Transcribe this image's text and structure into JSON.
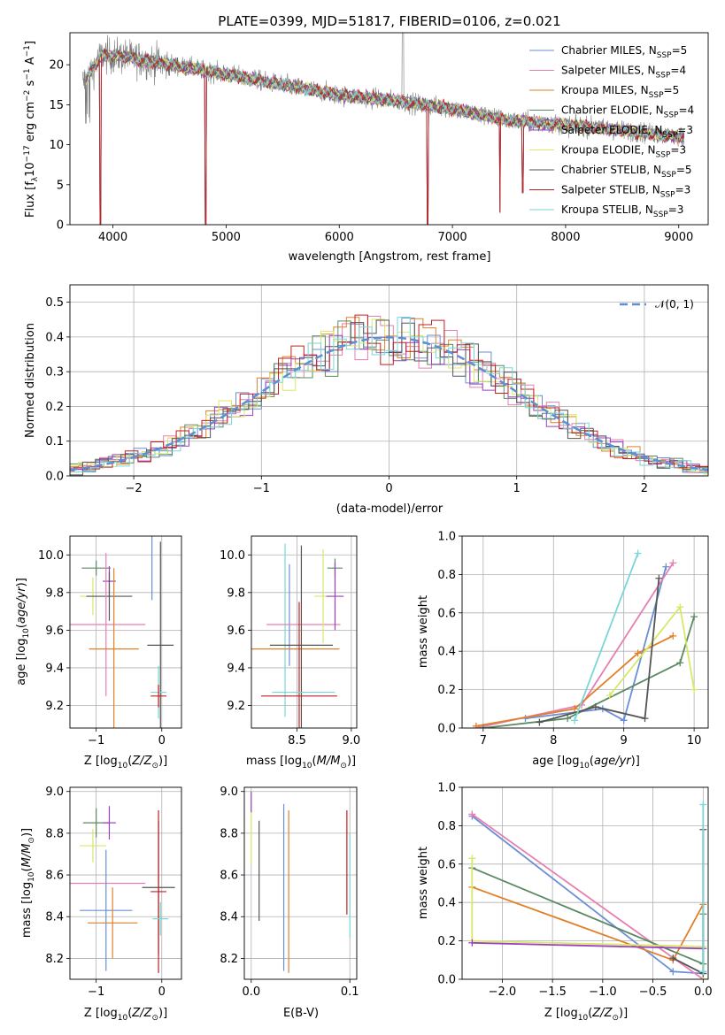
{
  "title": "PLATE=0399, MJD=51817, FIBERID=0106, z=0.021",
  "colors": {
    "Chabrier MILES": "#6a8fd6",
    "Salpeter MILES": "#e57fb1",
    "Kroupa MILES": "#e0802a",
    "Chabrier ELODIE": "#5a8a62",
    "Salpeter ELODIE": "#9a3fbf",
    "Kroupa ELODIE": "#d8e865",
    "Chabrier STELIB": "#555555",
    "Salpeter STELIB": "#c02020",
    "Kroupa STELIB": "#7ad6d8"
  },
  "chart_data": [
    {
      "id": "spectrum",
      "type": "line",
      "xlabel": "wavelength [Angstrom, rest frame]",
      "ylabel": "Flux [f_λ 10^-17 erg cm^-2 s^-1 A^-1]",
      "xlim": [
        3620,
        9260
      ],
      "ylim": [
        0,
        24
      ],
      "xticks": [
        4000,
        5000,
        6000,
        7000,
        8000,
        9000
      ],
      "yticks": [
        0,
        5,
        10,
        15,
        20
      ],
      "legend_position": "top-right",
      "legend": [
        {
          "base": "Chabrier MILES, N",
          "sub": "SSP",
          "tail": "=5"
        },
        {
          "base": "Salpeter MILES, N",
          "sub": "SSP",
          "tail": "=4"
        },
        {
          "base": "Kroupa MILES, N",
          "sub": "SSP",
          "tail": "=5"
        },
        {
          "base": "Chabrier ELODIE, N",
          "sub": "SSP",
          "tail": "=4"
        },
        {
          "base": "Salpeter ELODIE, N",
          "sub": "SSP",
          "tail": "=3"
        },
        {
          "base": "Kroupa ELODIE, N",
          "sub": "SSP",
          "tail": "=3"
        },
        {
          "base": "Chabrier STELIB, N",
          "sub": "SSP",
          "tail": "=5"
        },
        {
          "base": "Salpeter STELIB, N",
          "sub": "SSP",
          "tail": "=3"
        },
        {
          "base": "Kroupa STELIB, N",
          "sub": "SSP",
          "tail": "=3"
        }
      ],
      "continuum": [
        [
          3750,
          18
        ],
        [
          3900,
          21.2
        ],
        [
          4100,
          21
        ],
        [
          4300,
          20.5
        ],
        [
          4600,
          19.8
        ],
        [
          5000,
          18.8
        ],
        [
          5500,
          17.5
        ],
        [
          6000,
          16.2
        ],
        [
          6500,
          15.5
        ],
        [
          7000,
          14.5
        ],
        [
          7500,
          13
        ],
        [
          8000,
          12.5
        ],
        [
          8500,
          11.8
        ],
        [
          9000,
          11
        ]
      ],
      "absorption_lines": [
        [
          3890,
          0
        ],
        [
          4820,
          0
        ],
        [
          6780,
          0
        ],
        [
          7420,
          1.5
        ],
        [
          7620,
          4
        ]
      ],
      "emission_line": [
        6563,
        24
      ]
    },
    {
      "id": "residuals",
      "type": "histogram",
      "xlabel": "(data-model)/error",
      "ylabel": "Normed distribution",
      "xlim": [
        -2.5,
        2.5
      ],
      "ylim": [
        0,
        0.55
      ],
      "xticks": [
        -2,
        -1,
        0,
        1,
        2
      ],
      "yticks": [
        0.0,
        0.1,
        0.2,
        0.3,
        0.4,
        0.5
      ],
      "bin_width": 0.1,
      "legend": "𝒩(0, 1)",
      "legend_position": "top-right"
    },
    {
      "id": "age_vs_Z",
      "type": "scatter",
      "xlabel": "Z [log10(Z/Z⊙)]",
      "ylabel": "age  [log10(age/yr)]",
      "xlim": [
        -1.4,
        0.3
      ],
      "ylim": [
        9.08,
        10.1
      ],
      "xticks": [
        -1,
        0
      ],
      "yticks": [
        9.2,
        9.4,
        9.6,
        9.8,
        10.0
      ],
      "points": [
        {
          "model": "Chabrier MILES",
          "x": -0.15,
          "xerr": 0.0,
          "y": 9.96,
          "yerr": 0.2
        },
        {
          "model": "Chabrier ELODIE",
          "x": -1.0,
          "xerr": 0.22,
          "y": 9.93,
          "yerr": 0.04
        },
        {
          "model": "Salpeter ELODIE",
          "x": -0.8,
          "xerr": 0.1,
          "y": 9.86,
          "yerr": 0.08
        },
        {
          "model": "Kroupa ELODIE",
          "x": -1.05,
          "xerr": 0.2,
          "y": 9.78,
          "yerr": 0.1
        },
        {
          "model": "Chabrier STELIB",
          "x": -0.8,
          "xerr": 0.35,
          "y": 9.78,
          "yerr": 0.13
        },
        {
          "model": "Salpeter MILES",
          "x": -0.85,
          "xerr": 0.6,
          "y": 9.63,
          "yerr": 0.38
        },
        {
          "model": "Kroupa MILES",
          "x": -0.73,
          "xerr": 0.38,
          "y": 9.5,
          "yerr": 0.43
        },
        {
          "model": "Chabrier STELIB",
          "x": -0.02,
          "xerr": 0.2,
          "y": 9.52,
          "yerr": 0.55
        },
        {
          "model": "Kroupa STELIB",
          "x": -0.05,
          "xerr": 0.12,
          "y": 9.27,
          "yerr": 0.14
        },
        {
          "model": "Salpeter STELIB",
          "x": -0.05,
          "xerr": 0.12,
          "y": 9.25,
          "yerr": 0.06
        }
      ]
    },
    {
      "id": "age_vs_mass",
      "type": "scatter",
      "xlabel": "mass [log10(M/M⊙)]",
      "ylabel": "",
      "xlim": [
        8.08,
        9.05
      ],
      "ylim": [
        9.08,
        10.1
      ],
      "xticks": [
        8.5,
        9.0
      ],
      "yticks": [
        9.2,
        9.4,
        9.6,
        9.8,
        10.0
      ],
      "points": [
        {
          "model": "Kroupa STELIB",
          "x": 8.39,
          "xerr": 0.0,
          "y": 9.6,
          "yerr": 0.46
        },
        {
          "model": "Chabrier MILES",
          "x": 8.43,
          "xerr": 0.0,
          "y": 9.68,
          "yerr": 0.27
        },
        {
          "model": "Salpeter MILES",
          "x": 8.56,
          "xerr": 0.34,
          "y": 9.63,
          "yerr": 0.0
        },
        {
          "model": "Kroupa MILES",
          "x": 8.37,
          "xerr": 0.52,
          "y": 9.5,
          "yerr": 0.0
        },
        {
          "model": "Chabrier STELIB",
          "x": 8.54,
          "xerr": 0.29,
          "y": 9.52,
          "yerr": 0.53
        },
        {
          "model": "Salpeter STELIB",
          "x": 8.52,
          "xerr": 0.35,
          "y": 9.25,
          "yerr": 0.5
        },
        {
          "model": "Kroupa STELIB",
          "x": 8.56,
          "xerr": 0.29,
          "y": 9.27,
          "yerr": 0.0
        },
        {
          "model": "Kroupa ELODIE",
          "x": 8.74,
          "xerr": 0.08,
          "y": 9.78,
          "yerr": 0.25
        },
        {
          "model": "Chabrier ELODIE",
          "x": 8.85,
          "xerr": 0.07,
          "y": 9.93,
          "yerr": 0.05
        },
        {
          "model": "Salpeter ELODIE",
          "x": 8.85,
          "xerr": 0.08,
          "y": 9.78,
          "yerr": 0.18
        }
      ]
    },
    {
      "id": "weight_vs_age",
      "type": "line",
      "xlabel": "age  [log10(age/yr)]",
      "ylabel": "mass weight",
      "xlim": [
        6.7,
        10.2
      ],
      "ylim": [
        0,
        1
      ],
      "xticks": [
        7,
        8,
        9,
        10
      ],
      "yticks": [
        0.0,
        0.2,
        0.4,
        0.6,
        0.8,
        1.0
      ],
      "series": [
        {
          "model": "Chabrier MILES",
          "x": [
            7.6,
            8.7,
            9.0,
            9.6
          ],
          "y": [
            0.05,
            0.1,
            0.04,
            0.84
          ]
        },
        {
          "model": "Salpeter MILES",
          "x": [
            6.9,
            8.4,
            9.7
          ],
          "y": [
            0.0,
            0.12,
            0.86
          ]
        },
        {
          "model": "Kroupa MILES",
          "x": [
            6.9,
            8.3,
            9.2,
            9.7
          ],
          "y": [
            0.01,
            0.1,
            0.39,
            0.48
          ]
        },
        {
          "model": "Chabrier ELODIE",
          "x": [
            7.0,
            8.2,
            9.8,
            10.0
          ],
          "y": [
            0.0,
            0.05,
            0.34,
            0.58
          ]
        },
        {
          "model": "Kroupa ELODIE",
          "x": [
            8.8,
            9.8,
            10.0
          ],
          "y": [
            0.17,
            0.63,
            0.2
          ]
        },
        {
          "model": "Chabrier STELIB",
          "x": [
            7.8,
            8.6,
            9.3,
            9.5
          ],
          "y": [
            0.03,
            0.11,
            0.05,
            0.78
          ]
        },
        {
          "model": "Kroupa STELIB",
          "x": [
            8.3,
            9.2
          ],
          "y": [
            0.04,
            0.91
          ]
        }
      ]
    },
    {
      "id": "mass_vs_Z",
      "type": "scatter",
      "xlabel": "Z [log10(Z/Z⊙)]",
      "ylabel": "mass [log10(M/M⊙)]",
      "xlim": [
        -1.4,
        0.3
      ],
      "ylim": [
        8.1,
        9.02
      ],
      "xticks": [
        -1,
        0
      ],
      "yticks": [
        8.2,
        8.4,
        8.6,
        8.8,
        9.0
      ],
      "points": [
        {
          "model": "Chabrier ELODIE",
          "x": -1.0,
          "xerr": 0.2,
          "y": 8.85,
          "yerr": 0.07
        },
        {
          "model": "Salpeter ELODIE",
          "x": -0.8,
          "xerr": 0.1,
          "y": 8.85,
          "yerr": 0.08
        },
        {
          "model": "Kroupa ELODIE",
          "x": -1.05,
          "xerr": 0.2,
          "y": 8.74,
          "yerr": 0.08
        },
        {
          "model": "Salpeter MILES",
          "x": -0.85,
          "xerr": 0.6,
          "y": 8.56,
          "yerr": 0.0
        },
        {
          "model": "Chabrier MILES",
          "x": -0.85,
          "xerr": 0.4,
          "y": 8.43,
          "yerr": 0.29
        },
        {
          "model": "Kroupa MILES",
          "x": -0.75,
          "xerr": 0.38,
          "y": 8.37,
          "yerr": 0.17
        },
        {
          "model": "Chabrier STELIB",
          "x": -0.05,
          "xerr": 0.25,
          "y": 8.54,
          "yerr": 0.32
        },
        {
          "model": "Salpeter STELIB",
          "x": -0.05,
          "xerr": 0.12,
          "y": 8.52,
          "yerr": 0.39
        },
        {
          "model": "Kroupa STELIB",
          "x": -0.02,
          "xerr": 0.12,
          "y": 8.39,
          "yerr": 0.08
        }
      ]
    },
    {
      "id": "mass_vs_ebv",
      "type": "scatter",
      "xlabel": "E(B-V)",
      "ylabel": "",
      "xlim": [
        -0.007,
        0.107
      ],
      "ylim": [
        8.1,
        9.02
      ],
      "xticks": [
        0.0,
        0.1
      ],
      "yticks": [
        8.2,
        8.4,
        8.6,
        8.8,
        9.0
      ],
      "points": [
        {
          "model": "Kroupa ELODIE",
          "x": 0.0,
          "y": 8.8,
          "yerr": 0.15
        },
        {
          "model": "Salpeter ELODIE",
          "x": 0.0,
          "y": 8.95,
          "yerr": 0.05
        },
        {
          "model": "Chabrier STELIB",
          "x": 0.008,
          "y": 8.62,
          "yerr": 0.24
        },
        {
          "model": "Chabrier MILES",
          "x": 0.033,
          "y": 8.54,
          "yerr": 0.4
        },
        {
          "model": "Kroupa MILES",
          "x": 0.038,
          "y": 8.52,
          "yerr": 0.39
        },
        {
          "model": "Salpeter STELIB",
          "x": 0.097,
          "y": 8.66,
          "yerr": 0.25
        },
        {
          "model": "Kroupa STELIB",
          "x": 0.1,
          "y": 8.55,
          "yerr": 0.25
        }
      ]
    },
    {
      "id": "weight_vs_Z",
      "type": "line",
      "xlabel": "Z [log10(Z/Z⊙)]",
      "ylabel": "mass weight",
      "xlim": [
        -2.4,
        0.05
      ],
      "ylim": [
        0,
        1
      ],
      "xticks": [
        -2.0,
        -1.5,
        -1.0,
        -0.5,
        0.0
      ],
      "yticks": [
        0.0,
        0.2,
        0.4,
        0.6,
        0.8,
        1.0
      ],
      "series": [
        {
          "model": "Chabrier MILES",
          "x": [
            -2.3,
            -0.3,
            0.0
          ],
          "y": [
            0.85,
            0.04,
            0.03
          ]
        },
        {
          "model": "Salpeter MILES",
          "x": [
            -2.3,
            0.0
          ],
          "y": [
            0.86,
            0.0
          ]
        },
        {
          "model": "Kroupa MILES",
          "x": [
            -2.3,
            -0.3,
            0.0
          ],
          "y": [
            0.48,
            0.1,
            0.39
          ]
        },
        {
          "model": "Chabrier ELODIE",
          "x": [
            -2.3,
            0.0,
            0.0
          ],
          "y": [
            0.58,
            0.08,
            0.34
          ]
        },
        {
          "model": "Kroupa ELODIE",
          "x": [
            -2.3,
            -2.3,
            0.0,
            0.0
          ],
          "y": [
            0.63,
            0.2,
            0.17,
            0.0
          ]
        },
        {
          "model": "Salpeter ELODIE",
          "x": [
            -2.3,
            0.0
          ],
          "y": [
            0.19,
            0.16
          ]
        },
        {
          "model": "Chabrier STELIB",
          "x": [
            -0.3,
            0.0,
            0.0
          ],
          "y": [
            0.11,
            0.03,
            0.78
          ]
        },
        {
          "model": "Kroupa STELIB",
          "x": [
            0.0,
            0.0
          ],
          "y": [
            0.91,
            0.04
          ]
        }
      ]
    }
  ]
}
